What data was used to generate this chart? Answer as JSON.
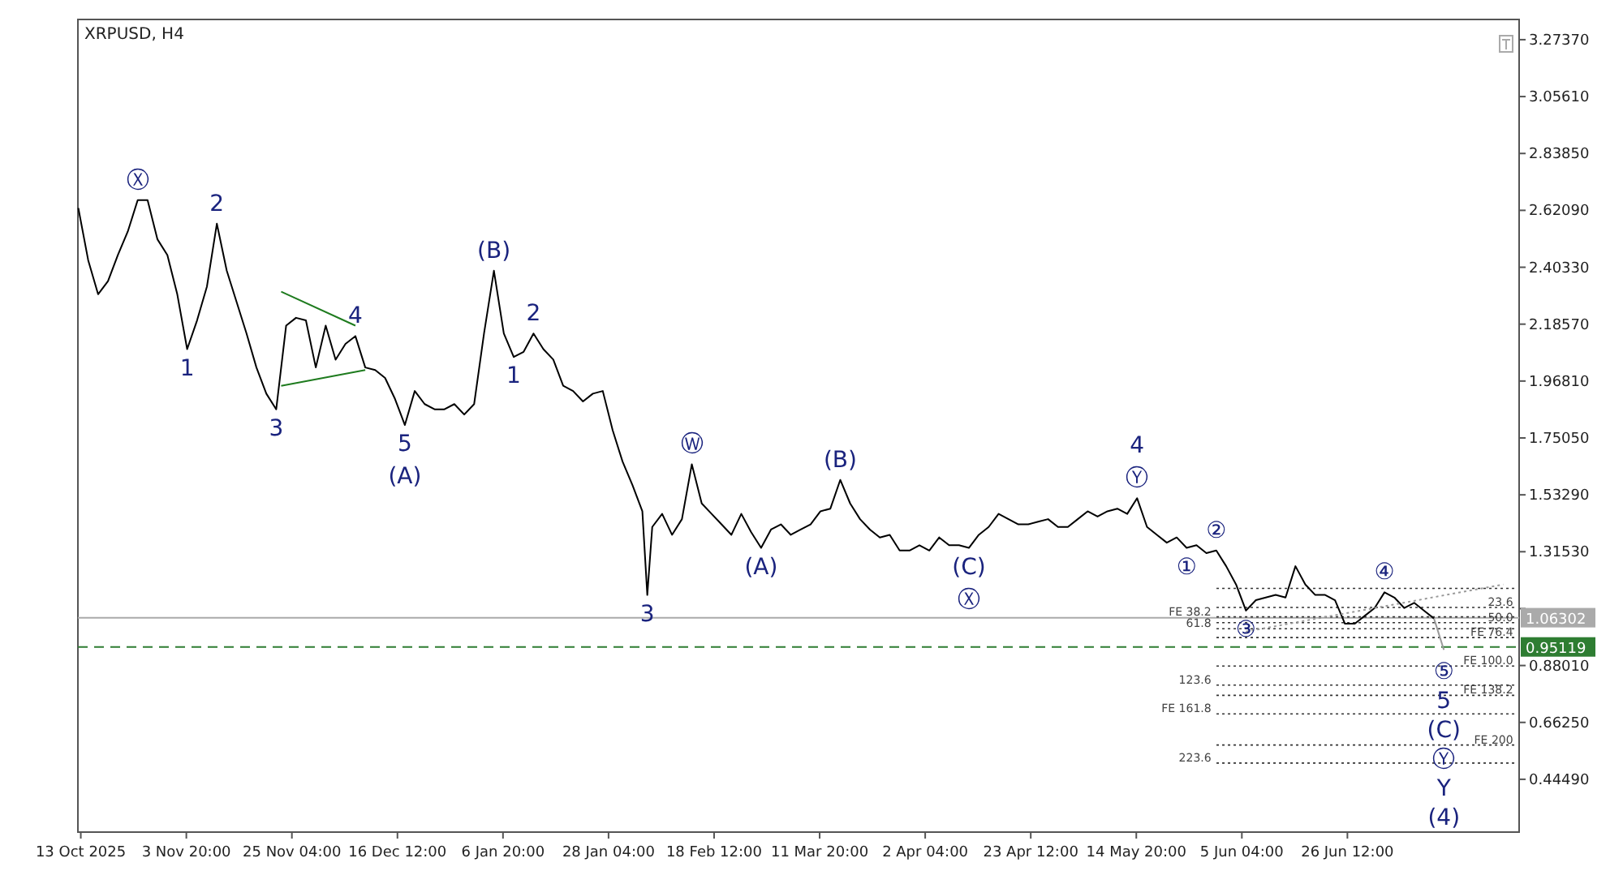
{
  "chart_data": {
    "type": "line",
    "title": "XRPUSD, H4",
    "xlim": [
      "2025-10-12T22:00",
      "2026-07-31T05:00"
    ],
    "xticks": [
      {
        "value": "2025-10-13T12:00",
        "label": "13 Oct 2025"
      },
      {
        "value": "2025-11-03T20:00",
        "label": "3 Nov 20:00"
      },
      {
        "value": "2025-11-25T04:00",
        "label": "25 Nov 04:00"
      },
      {
        "value": "2025-12-16T12:00",
        "label": "16 Dec 12:00"
      },
      {
        "value": "2026-01-06T20:00",
        "label": "6 Jan 20:00"
      },
      {
        "value": "2026-01-28T04:00",
        "label": "28 Jan 04:00"
      },
      {
        "value": "2026-02-18T12:00",
        "label": "18 Feb 12:00"
      },
      {
        "value": "2026-03-11T20:00",
        "label": "11 Mar 20:00"
      },
      {
        "value": "2026-04-02T04:00",
        "label": "2 Apr 04:00"
      },
      {
        "value": "2026-04-23T12:00",
        "label": "23 Apr 12:00"
      },
      {
        "value": "2026-05-14T20:00",
        "label": "14 May 20:00"
      },
      {
        "value": "2026-06-05T04:00",
        "label": "5 Jun 04:00"
      },
      {
        "value": "2026-06-26T12:00",
        "label": "26 Jun 12:00"
      }
    ],
    "ylim": [
      0.243,
      3.351
    ],
    "yticks": [
      {
        "value": 0.4449,
        "label": "0.44490"
      },
      {
        "value": 0.6625,
        "label": "0.66250"
      },
      {
        "value": 0.8801,
        "label": "0.88010"
      },
      {
        "value": 1.0977,
        "label": null
      },
      {
        "value": 1.3153,
        "label": "1.31530"
      },
      {
        "value": 1.5329,
        "label": "1.53290"
      },
      {
        "value": 1.7505,
        "label": "1.75050"
      },
      {
        "value": 1.9681,
        "label": "1.96810"
      },
      {
        "value": 2.1857,
        "label": "2.18570"
      },
      {
        "value": 2.4033,
        "label": "2.40330"
      },
      {
        "value": 2.6209,
        "label": "2.62090"
      },
      {
        "value": 2.8385,
        "label": "2.83850"
      },
      {
        "value": 3.0561,
        "label": "3.05610"
      },
      {
        "value": 3.2737,
        "label": "3.27370"
      }
    ],
    "series": [
      {
        "color": "#000000",
        "x": [
          "2025-10-13",
          "2025-10-15",
          "2025-10-17",
          "2025-10-19",
          "2025-10-21",
          "2025-10-23",
          "2025-10-25",
          "2025-10-27",
          "2025-10-29",
          "2025-10-31",
          "2025-11-02",
          "2025-11-04",
          "2025-11-06",
          "2025-11-08",
          "2025-11-10",
          "2025-11-12",
          "2025-11-14",
          "2025-11-16",
          "2025-11-18",
          "2025-11-20",
          "2025-11-22",
          "2025-11-24",
          "2025-11-26",
          "2025-11-28",
          "2025-11-30",
          "2025-12-02",
          "2025-12-04",
          "2025-12-06",
          "2025-12-08",
          "2025-12-10",
          "2025-12-12",
          "2025-12-14",
          "2025-12-16",
          "2025-12-18",
          "2025-12-20",
          "2025-12-22",
          "2025-12-24",
          "2025-12-26",
          "2025-12-28",
          "2025-12-30",
          "2026-01-01",
          "2026-01-03",
          "2026-01-05",
          "2026-01-07",
          "2026-01-09",
          "2026-01-11",
          "2026-01-13",
          "2026-01-15",
          "2026-01-17",
          "2026-01-19",
          "2026-01-21",
          "2026-01-23",
          "2026-01-25",
          "2026-01-27",
          "2026-01-29",
          "2026-01-31",
          "2026-02-02",
          "2026-02-04",
          "2026-02-05",
          "2026-02-06",
          "2026-02-08",
          "2026-02-10",
          "2026-02-12",
          "2026-02-14",
          "2026-02-16",
          "2026-02-18",
          "2026-02-20",
          "2026-02-22",
          "2026-02-24",
          "2026-02-26",
          "2026-02-28",
          "2026-03-02",
          "2026-03-04",
          "2026-03-06",
          "2026-03-08",
          "2026-03-10",
          "2026-03-12",
          "2026-03-14",
          "2026-03-16",
          "2026-03-18",
          "2026-03-20",
          "2026-03-22",
          "2026-03-24",
          "2026-03-26",
          "2026-03-28",
          "2026-03-30",
          "2026-04-01",
          "2026-04-03",
          "2026-04-05",
          "2026-04-07",
          "2026-04-09",
          "2026-04-11",
          "2026-04-13",
          "2026-04-15",
          "2026-04-17",
          "2026-04-19",
          "2026-04-21",
          "2026-04-23",
          "2026-04-25",
          "2026-04-27",
          "2026-04-29",
          "2026-05-01",
          "2026-05-03",
          "2026-05-05",
          "2026-05-07",
          "2026-05-09",
          "2026-05-11",
          "2026-05-13",
          "2026-05-15",
          "2026-05-17",
          "2026-05-19",
          "2026-05-21",
          "2026-05-23",
          "2026-05-25",
          "2026-05-27",
          "2026-05-29",
          "2026-05-31",
          "2026-06-02",
          "2026-06-04",
          "2026-06-06",
          "2026-06-08",
          "2026-06-10",
          "2026-06-12",
          "2026-06-14",
          "2026-06-16",
          "2026-06-18",
          "2026-06-20",
          "2026-06-22",
          "2026-06-24",
          "2026-06-26",
          "2026-06-28",
          "2026-06-30",
          "2026-07-02",
          "2026-07-04",
          "2026-07-06",
          "2026-07-08",
          "2026-07-10",
          "2026-07-12",
          "2026-07-14"
        ],
        "values": [
          2.63,
          2.43,
          2.3,
          2.35,
          2.45,
          2.54,
          2.66,
          2.66,
          2.51,
          2.45,
          2.3,
          2.09,
          2.2,
          2.33,
          2.57,
          2.39,
          2.27,
          2.15,
          2.02,
          1.92,
          1.86,
          2.18,
          2.21,
          2.2,
          2.02,
          2.18,
          2.05,
          2.11,
          2.14,
          2.02,
          2.01,
          1.98,
          1.9,
          1.8,
          1.93,
          1.88,
          1.86,
          1.86,
          1.88,
          1.84,
          1.88,
          2.15,
          2.39,
          2.15,
          2.06,
          2.08,
          2.15,
          2.09,
          2.05,
          1.95,
          1.93,
          1.89,
          1.92,
          1.93,
          1.78,
          1.66,
          1.57,
          1.47,
          1.15,
          1.41,
          1.46,
          1.38,
          1.44,
          1.65,
          1.5,
          1.46,
          1.42,
          1.38,
          1.46,
          1.39,
          1.33,
          1.4,
          1.42,
          1.38,
          1.4,
          1.42,
          1.47,
          1.48,
          1.59,
          1.5,
          1.44,
          1.4,
          1.37,
          1.38,
          1.32,
          1.32,
          1.34,
          1.32,
          1.37,
          1.34,
          1.34,
          1.33,
          1.38,
          1.41,
          1.46,
          1.44,
          1.42,
          1.42,
          1.43,
          1.44,
          1.41,
          1.41,
          1.44,
          1.47,
          1.45,
          1.47,
          1.48,
          1.46,
          1.52,
          1.41,
          1.38,
          1.35,
          1.37,
          1.33,
          1.34,
          1.31,
          1.32,
          1.26,
          1.19,
          1.09,
          1.13,
          1.14,
          1.15,
          1.14,
          1.26,
          1.19,
          1.15,
          1.15,
          1.13,
          1.04,
          1.04,
          1.07,
          1.1,
          1.16,
          1.14,
          1.1,
          1.12,
          1.09,
          1.06
        ]
      },
      {
        "color": "#1e7b1e",
        "x": [
          "2025-11-23",
          "2025-12-08"
        ],
        "values": [
          2.31,
          2.18
        ]
      },
      {
        "color": "#1e7b1e",
        "x": [
          "2025-11-23",
          "2025-12-10"
        ],
        "values": [
          1.95,
          2.01
        ]
      },
      {
        "color": "#999999",
        "x": [
          "2026-07-14",
          "2026-07-16"
        ],
        "values": [
          1.06,
          0.94
        ]
      },
      {
        "color": "#999999",
        "line_style": "dotted",
        "x": [
          "2026-06-06",
          "2026-07-28"
        ],
        "values": [
          1.01,
          1.19
        ]
      }
    ],
    "ref_lines": [
      {
        "axis": "y",
        "value": 1.06302,
        "label": "1.06302",
        "color": "#aaaaaa"
      },
      {
        "axis": "y",
        "value": 0.95119,
        "label": "0.95119",
        "color": "#2e7d32",
        "line_style": "dashed"
      },
      {
        "axis": "y",
        "value": 1.175,
        "label": null,
        "color": "#333333",
        "line_style": "dotted"
      },
      {
        "axis": "y",
        "value": 1.102,
        "label": null,
        "color": "#333333",
        "line_style": "dotted"
      },
      {
        "axis": "y",
        "value": 1.066,
        "label": null,
        "color": "#333333",
        "line_style": "dotted"
      },
      {
        "axis": "y",
        "value": 1.044,
        "label": null,
        "color": "#333333",
        "line_style": "dotted"
      },
      {
        "axis": "y",
        "value": 1.021,
        "label": null,
        "color": "#333333",
        "line_style": "dotted"
      },
      {
        "axis": "y",
        "value": 0.987,
        "label": null,
        "color": "#333333",
        "line_style": "dotted"
      },
      {
        "axis": "y",
        "value": 0.878,
        "label": null,
        "color": "#333333",
        "line_style": "dotted"
      },
      {
        "axis": "y",
        "value": 0.805,
        "label": null,
        "color": "#333333",
        "line_style": "dotted"
      },
      {
        "axis": "y",
        "value": 0.766,
        "label": null,
        "color": "#333333",
        "line_style": "dotted"
      },
      {
        "axis": "y",
        "value": 0.695,
        "label": null,
        "color": "#333333",
        "line_style": "dotted"
      },
      {
        "axis": "y",
        "value": 0.576,
        "label": null,
        "color": "#333333",
        "line_style": "dotted"
      },
      {
        "axis": "y",
        "value": 0.507,
        "label": null,
        "color": "#333333",
        "line_style": "dotted"
      }
    ],
    "annotations": [
      {
        "text": "Ⓧ",
        "x": "2025-10-25",
        "y": 2.66
      },
      {
        "text": "2",
        "x": "2025-11-10",
        "y": 2.57
      },
      {
        "text": "1",
        "x": "2025-11-04",
        "y": 2.09
      },
      {
        "text": "3",
        "x": "2025-11-22",
        "y": 1.86
      },
      {
        "text": "4",
        "x": "2025-12-08",
        "y": 2.14
      },
      {
        "text": "5",
        "x": "2025-12-18",
        "y": 1.8
      },
      {
        "text": "(A)",
        "x": "2025-12-18",
        "y": 1.8
      },
      {
        "text": "(B)",
        "x": "2026-01-05",
        "y": 2.39
      },
      {
        "text": "2",
        "x": "2026-01-13",
        "y": 2.15
      },
      {
        "text": "1",
        "x": "2026-01-09",
        "y": 2.06
      },
      {
        "text": "Ⓦ",
        "x": "2026-02-14",
        "y": 1.65
      },
      {
        "text": "3",
        "x": "2026-02-05",
        "y": 1.15
      },
      {
        "text": "(A)",
        "x": "2026-02-28",
        "y": 1.33
      },
      {
        "text": "(B)",
        "x": "2026-03-16",
        "y": 1.59
      },
      {
        "text": "(C)",
        "x": "2026-04-11",
        "y": 1.33
      },
      {
        "text": "Ⓧ",
        "x": "2026-04-11",
        "y": 1.33
      },
      {
        "text": "Ⓨ",
        "x": "2026-05-15",
        "y": 1.52
      },
      {
        "text": "4",
        "x": "2026-05-15",
        "y": 1.52
      },
      {
        "text": "②",
        "x": "2026-05-31",
        "y": 1.32
      },
      {
        "text": "①",
        "x": "2026-05-25",
        "y": 1.33
      },
      {
        "text": "③",
        "x": "2026-06-06",
        "y": 1.09
      },
      {
        "text": "④",
        "x": "2026-07-04",
        "y": 1.16
      },
      "⑤",
      "5",
      "(C)",
      "Ⓨ",
      "Y",
      "(4)",
      {
        "text": "23.6",
        "x": "2026-07-30",
        "y": 1.102
      },
      {
        "text": "FE 38.2",
        "x": "2026-05-30",
        "y": 1.066
      },
      {
        "text": "50.0",
        "x": "2026-07-30",
        "y": 1.044
      },
      {
        "text": "61.8",
        "x": "2026-05-30",
        "y": 1.021
      },
      {
        "text": "FE 76.4",
        "x": "2026-07-30",
        "y": 0.987
      },
      {
        "text": "FE 100.0",
        "x": "2026-07-30",
        "y": 0.878
      },
      {
        "text": "123.6",
        "x": "2026-05-30",
        "y": 0.805
      },
      {
        "text": "FE 138.2",
        "x": "2026-07-30",
        "y": 0.766
      },
      {
        "text": "FE 161.8",
        "x": "2026-05-30",
        "y": 0.695
      },
      {
        "text": "FE 200",
        "x": "2026-07-30",
        "y": 0.576
      },
      {
        "text": "223.6",
        "x": "2026-05-30",
        "y": 0.507
      }
    ]
  }
}
